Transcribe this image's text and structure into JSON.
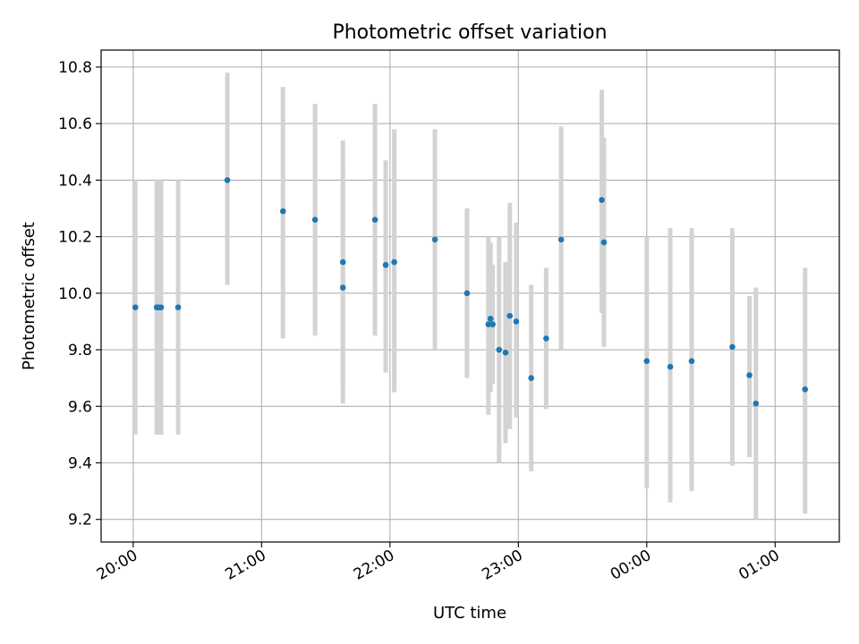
{
  "chart_data": {
    "type": "scatter",
    "title": "Photometric offset variation",
    "xlabel": "UTC time",
    "ylabel": "Photometric offset",
    "x_ticks": [
      "20:00",
      "21:00",
      "22:00",
      "23:00",
      "00:00",
      "01:00"
    ],
    "y_ticks": [
      "9.2",
      "9.4",
      "9.6",
      "9.8",
      "10.0",
      "10.2",
      "10.4",
      "10.6",
      "10.8"
    ],
    "xlim": [
      "19:45",
      "01:30"
    ],
    "ylim": [
      9.12,
      10.86
    ],
    "grid": true,
    "legend": false,
    "x_is_time_past_midnight": true,
    "colors": {
      "point": "#1f77b4",
      "errorbar": "#d3d3d3",
      "grid": "#b0b0b0"
    },
    "points": [
      {
        "x": "20:01",
        "y": 9.95,
        "ylow": 9.5,
        "yhigh": 10.4
      },
      {
        "x": "20:11",
        "y": 9.95,
        "ylow": 9.5,
        "yhigh": 10.4
      },
      {
        "x": "20:12",
        "y": 9.95,
        "ylow": 9.5,
        "yhigh": 10.4
      },
      {
        "x": "20:13",
        "y": 9.95,
        "ylow": 9.5,
        "yhigh": 10.4
      },
      {
        "x": "20:21",
        "y": 9.95,
        "ylow": 9.5,
        "yhigh": 10.4
      },
      {
        "x": "20:44",
        "y": 10.4,
        "ylow": 10.03,
        "yhigh": 10.78
      },
      {
        "x": "21:10",
        "y": 10.29,
        "ylow": 9.84,
        "yhigh": 10.73
      },
      {
        "x": "21:25",
        "y": 10.26,
        "ylow": 9.85,
        "yhigh": 10.67
      },
      {
        "x": "21:38",
        "y": 10.11,
        "ylow": 9.67,
        "yhigh": 10.54
      },
      {
        "x": "21:38",
        "y": 10.02,
        "ylow": 9.61,
        "yhigh": 10.43
      },
      {
        "x": "21:53",
        "y": 10.26,
        "ylow": 9.85,
        "yhigh": 10.67
      },
      {
        "x": "21:58",
        "y": 10.1,
        "ylow": 9.72,
        "yhigh": 10.47
      },
      {
        "x": "22:02",
        "y": 10.11,
        "ylow": 9.65,
        "yhigh": 10.58
      },
      {
        "x": "22:21",
        "y": 10.19,
        "ylow": 9.8,
        "yhigh": 10.58
      },
      {
        "x": "22:36",
        "y": 10.0,
        "ylow": 9.7,
        "yhigh": 10.3
      },
      {
        "x": "22:46",
        "y": 9.89,
        "ylow": 9.57,
        "yhigh": 10.2
      },
      {
        "x": "22:47",
        "y": 9.91,
        "ylow": 9.65,
        "yhigh": 10.18
      },
      {
        "x": "22:48",
        "y": 9.89,
        "ylow": 9.68,
        "yhigh": 10.1
      },
      {
        "x": "22:51",
        "y": 9.8,
        "ylow": 9.4,
        "yhigh": 10.2
      },
      {
        "x": "22:54",
        "y": 9.79,
        "ylow": 9.47,
        "yhigh": 10.11
      },
      {
        "x": "22:56",
        "y": 9.92,
        "ylow": 9.52,
        "yhigh": 10.32
      },
      {
        "x": "22:59",
        "y": 9.9,
        "ylow": 9.56,
        "yhigh": 10.25
      },
      {
        "x": "23:06",
        "y": 9.7,
        "ylow": 9.37,
        "yhigh": 10.03
      },
      {
        "x": "23:13",
        "y": 9.84,
        "ylow": 9.59,
        "yhigh": 10.09
      },
      {
        "x": "23:20",
        "y": 10.19,
        "ylow": 9.8,
        "yhigh": 10.59
      },
      {
        "x": "23:39",
        "y": 10.33,
        "ylow": 9.93,
        "yhigh": 10.72
      },
      {
        "x": "23:40",
        "y": 10.18,
        "ylow": 9.81,
        "yhigh": 10.55
      },
      {
        "x": "00:00",
        "y": 9.76,
        "ylow": 9.31,
        "yhigh": 10.2
      },
      {
        "x": "00:11",
        "y": 9.74,
        "ylow": 9.26,
        "yhigh": 10.23
      },
      {
        "x": "00:21",
        "y": 9.76,
        "ylow": 9.3,
        "yhigh": 10.23
      },
      {
        "x": "00:40",
        "y": 9.81,
        "ylow": 9.39,
        "yhigh": 10.23
      },
      {
        "x": "00:48",
        "y": 9.71,
        "ylow": 9.42,
        "yhigh": 9.99
      },
      {
        "x": "00:51",
        "y": 9.61,
        "ylow": 9.2,
        "yhigh": 10.02
      },
      {
        "x": "01:14",
        "y": 9.66,
        "ylow": 9.22,
        "yhigh": 10.09
      }
    ]
  }
}
